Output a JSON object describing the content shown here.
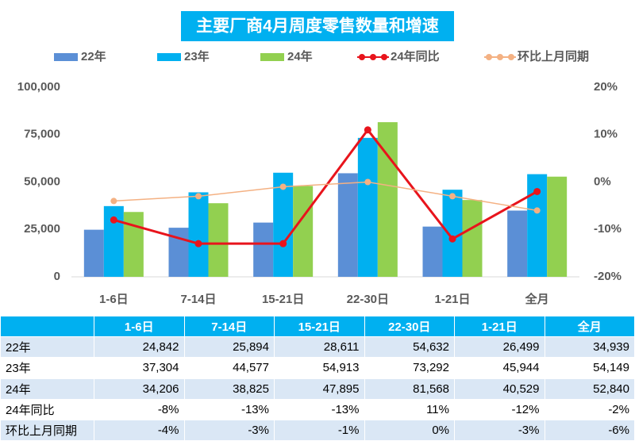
{
  "chart_data": {
    "type": "bar",
    "title": "主要厂商4月周度零售数量和增速",
    "categories": [
      "1-6日",
      "7-14日",
      "15-21日",
      "22-30日",
      "1-21日",
      "全月"
    ],
    "series": [
      {
        "name": "22年",
        "color": "#5b8fd6",
        "values": [
          24842,
          25894,
          28611,
          54632,
          26499,
          34939
        ],
        "value_labels": [
          "24,842",
          "25,894",
          "28,611",
          "54,632",
          "26,499",
          "34,939"
        ]
      },
      {
        "name": "23年",
        "color": "#00b0f0",
        "values": [
          37304,
          44577,
          54913,
          73292,
          45944,
          54149
        ],
        "value_labels": [
          "37,304",
          "44,577",
          "54,913",
          "73,292",
          "45,944",
          "54,149"
        ]
      },
      {
        "name": "24年",
        "color": "#92d050",
        "values": [
          34206,
          38825,
          47895,
          81568,
          40529,
          52840
        ],
        "value_labels": [
          "34,206",
          "38,825",
          "47,895",
          "81,568",
          "40,529",
          "52,840"
        ]
      },
      {
        "name": "24年同比",
        "type": "line",
        "axis": "y2",
        "color": "#e8141c",
        "values": [
          -8,
          -13,
          -13,
          11,
          -12,
          -2
        ],
        "value_labels": [
          "-8%",
          "-13%",
          "-13%",
          "11%",
          "-12%",
          "-2%"
        ]
      },
      {
        "name": "环比上月同期",
        "type": "line",
        "axis": "y2",
        "color": "#f4b183",
        "values": [
          -4,
          -3,
          -1,
          0,
          -3,
          -6
        ],
        "value_labels": [
          "-4%",
          "-3%",
          "-1%",
          "0%",
          "-3%",
          "-6%"
        ]
      }
    ],
    "ylim": [
      0,
      100000
    ],
    "yticks": [
      0,
      {
        "value": 25000,
        "label": "25,000"
      },
      {
        "value": 50000,
        "label": "50,000"
      },
      {
        "value": 75000,
        "label": "75,000"
      },
      {
        "value": 100000,
        "label": "100,000"
      }
    ],
    "y2lim": [
      -20,
      20
    ],
    "y2ticks": [
      {
        "value": -20,
        "label": "-20%"
      },
      {
        "value": -10,
        "label": "-10%"
      },
      {
        "value": 0,
        "label": "0%"
      },
      {
        "value": 10,
        "label": "10%"
      },
      {
        "value": 20,
        "label": "20%"
      }
    ],
    "grid": false,
    "legend": "top"
  }
}
